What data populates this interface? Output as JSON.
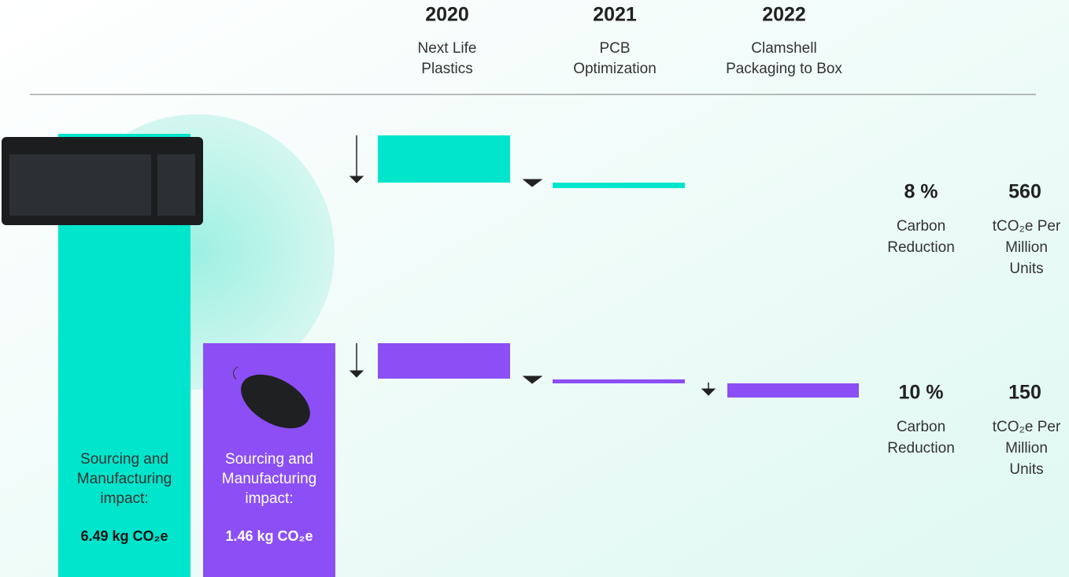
{
  "timeline": [
    {
      "year": "2020",
      "lines": [
        "Next Life",
        "Plastics"
      ]
    },
    {
      "year": "2021",
      "lines": [
        "PCB",
        "Optimization"
      ]
    },
    {
      "year": "2022",
      "lines": [
        "Clamshell",
        "Packaging to Box"
      ]
    }
  ],
  "products": [
    {
      "impact_lines": [
        "Sourcing and",
        "Manufacturing",
        "impact:"
      ],
      "impact_value": "6.49 kg CO₂e",
      "reduction": "8 %",
      "reduction_lines": [
        "Carbon",
        "Reduction"
      ],
      "saving": "560",
      "saving_lines": [
        "tCO₂e Per",
        "Million",
        "Units"
      ]
    },
    {
      "impact_lines": [
        "Sourcing and",
        "Manufacturing",
        "impact:"
      ],
      "impact_value": "1.46 kg CO₂e",
      "reduction": "10 %",
      "reduction_lines": [
        "Carbon",
        "Reduction"
      ],
      "saving": "150",
      "saving_lines": [
        "tCO₂e Per",
        "Million",
        "Units"
      ]
    }
  ]
}
